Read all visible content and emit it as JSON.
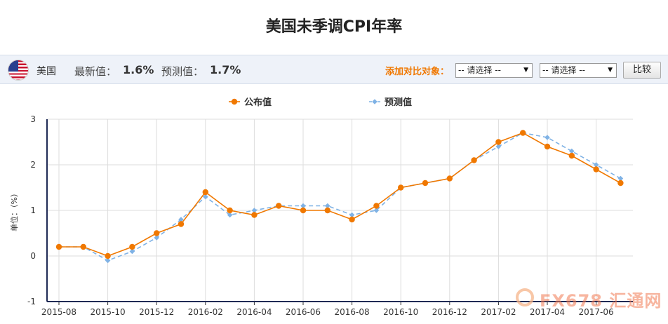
{
  "page": {
    "title": "美国未季调CPI年率"
  },
  "info_bar": {
    "country": "美国",
    "latest_label": "最新值：",
    "latest_value": "1.6%",
    "forecast_label": "预测值：",
    "forecast_value": "1.7%",
    "compare_label": "添加对比对象：",
    "select_1": "-- 请选择 --",
    "select_2": "-- 请选择 --",
    "compare_button": "比较",
    "flag_icon": "us-flag-icon"
  },
  "watermark": {
    "text": "FX678 汇通网"
  },
  "chart_data": {
    "type": "line",
    "ylabel": "单位：（%）",
    "ylim": [
      -1,
      3
    ],
    "yticks": [
      -1,
      0,
      1,
      2,
      3
    ],
    "x": [
      "2015-08",
      "2015-09",
      "2015-10",
      "2015-11",
      "2015-12",
      "2016-01",
      "2016-02",
      "2016-03",
      "2016-04",
      "2016-05",
      "2016-06",
      "2016-07",
      "2016-08",
      "2016-09",
      "2016-10",
      "2016-11",
      "2016-12",
      "2017-01",
      "2017-02",
      "2017-03",
      "2017-04",
      "2017-05",
      "2017-06",
      "2017-07"
    ],
    "xtick_labels": [
      "2015-08",
      "2015-10",
      "2015-12",
      "2016-02",
      "2016-04",
      "2016-06",
      "2016-08",
      "2016-10",
      "2016-12",
      "2017-02",
      "2017-04",
      "2017-06"
    ],
    "grid": true,
    "legend_position": "top-center",
    "series": [
      {
        "name": "公布值",
        "color": "#f07800",
        "marker": "circle",
        "values": [
          0.2,
          0.2,
          0.0,
          0.2,
          0.5,
          0.7,
          1.4,
          1.0,
          0.9,
          1.1,
          1.0,
          1.0,
          0.8,
          1.1,
          1.5,
          1.6,
          1.7,
          2.1,
          2.5,
          2.7,
          2.4,
          2.2,
          1.9,
          1.6
        ]
      },
      {
        "name": "预测值",
        "color": "#7fb2e5",
        "marker": "diamond",
        "dashed": true,
        "values": [
          0.2,
          0.2,
          -0.1,
          0.1,
          0.4,
          0.8,
          1.3,
          0.9,
          1.0,
          1.1,
          1.1,
          1.1,
          0.9,
          1.0,
          1.5,
          1.6,
          1.7,
          2.1,
          2.4,
          2.7,
          2.6,
          2.3,
          2.0,
          1.7
        ]
      }
    ]
  }
}
